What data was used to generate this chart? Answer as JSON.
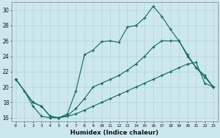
{
  "xlabel": "Humidex (Indice chaleur)",
  "bg_color": "#cce8ee",
  "grid_color": "#b8d4da",
  "line_color": "#1a6b60",
  "xlim": [
    -0.5,
    23.5
  ],
  "ylim": [
    15.5,
    31.0
  ],
  "xticks": [
    0,
    1,
    2,
    3,
    4,
    5,
    6,
    7,
    8,
    9,
    10,
    11,
    12,
    13,
    14,
    15,
    16,
    17,
    18,
    19,
    20,
    21,
    22,
    23
  ],
  "yticks": [
    16,
    18,
    20,
    22,
    24,
    26,
    28,
    30
  ],
  "series1_x": [
    0,
    1,
    2,
    3,
    4,
    5,
    6,
    7,
    8,
    9,
    10,
    11,
    12,
    13,
    14,
    15,
    16,
    17,
    18,
    19,
    20,
    21,
    22,
    23
  ],
  "series1_y": [
    21,
    19.5,
    17.5,
    16.2,
    16.0,
    16.0,
    16.5,
    19.5,
    24.2,
    24.8,
    25.9,
    26.0,
    25.8,
    27.8,
    28.0,
    29.0,
    30.5,
    29.2,
    27.5,
    26.0,
    24.0,
    22.5,
    21.3,
    20.0
  ],
  "series2_x": [
    0,
    2,
    3,
    4,
    5,
    6,
    7,
    8,
    9,
    10,
    11,
    12,
    13,
    14,
    15,
    16,
    17,
    18,
    19,
    20,
    21,
    22,
    23
  ],
  "series2_y": [
    21,
    18.0,
    17.5,
    16.2,
    16.0,
    16.3,
    17.2,
    18.5,
    20.0,
    20.5,
    21.0,
    21.5,
    22.2,
    23.0,
    24.0,
    25.2,
    26.0,
    26.0,
    26.0,
    24.2,
    22.5,
    21.5,
    20.0
  ],
  "series3_x": [
    0,
    2,
    3,
    4,
    5,
    6,
    7,
    8,
    9,
    10,
    11,
    12,
    13,
    14,
    15,
    16,
    17,
    18,
    19,
    20,
    21,
    22,
    23
  ],
  "series3_y": [
    21,
    18.0,
    17.5,
    16.2,
    16.0,
    16.2,
    16.5,
    17.0,
    17.5,
    18.0,
    18.5,
    19.0,
    19.5,
    20.0,
    20.5,
    21.0,
    21.5,
    22.0,
    22.5,
    23.0,
    23.2,
    20.5,
    20.0
  ]
}
